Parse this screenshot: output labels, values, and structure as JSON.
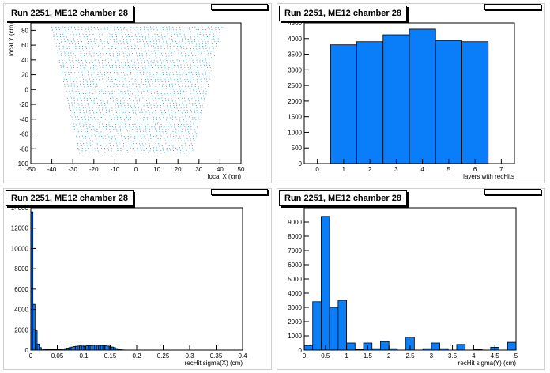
{
  "panels": [
    {
      "title": "Run 2251, ME12 chamber 28"
    },
    {
      "title": "Run 2251, ME12 chamber 28"
    },
    {
      "title": "Run 2251, ME12 chamber 28"
    },
    {
      "title": "Run 2251, ME12 chamber 28"
    }
  ],
  "colors": {
    "fill": "#0a7df8",
    "edge": "#000000",
    "scatter": "#1a8fd8"
  },
  "chart_data": [
    {
      "type": "scatter",
      "title": "Run 2251, ME12 chamber 28",
      "xlabel": "local X (cm)",
      "ylabel": "local Y (cm)",
      "xlim": [
        -50,
        50
      ],
      "ylim": [
        -100,
        90
      ],
      "xticks": [
        -50,
        -40,
        -30,
        -20,
        -10,
        0,
        10,
        20,
        30,
        40,
        50
      ],
      "yticks": [
        -100,
        -80,
        -60,
        -40,
        -20,
        0,
        20,
        40,
        60,
        80
      ],
      "region": {
        "top_y": 85,
        "bottom_y": -85,
        "top_xmin": -40,
        "top_xmax": 41,
        "bottom_xmin": -27,
        "bottom_xmax": 27
      }
    },
    {
      "type": "bar",
      "title": "Run 2251, ME12 chamber 28",
      "xlabel": "layers with recHits",
      "ylabel": "",
      "xlim": [
        -0.5,
        7.5
      ],
      "ylim": [
        0,
        4500
      ],
      "xticks": [
        0,
        1,
        2,
        3,
        4,
        5,
        6,
        7
      ],
      "yticks": [
        0,
        500,
        1000,
        1500,
        2000,
        2500,
        3000,
        3500,
        4000,
        4500
      ],
      "bin_width": 1,
      "x": [
        1,
        2,
        3,
        4,
        5,
        6
      ],
      "values": [
        3800,
        3900,
        4120,
        4300,
        3930,
        3900
      ]
    },
    {
      "type": "bar",
      "title": "Run 2251, ME12 chamber 28",
      "xlabel": "recHit sigma(X) (cm)",
      "ylabel": "",
      "xlim": [
        0,
        0.4
      ],
      "ylim": [
        0,
        14000
      ],
      "xticks": [
        0,
        0.05,
        0.1,
        0.15,
        0.2,
        0.25,
        0.3,
        0.35,
        0.4
      ],
      "yticks": [
        0,
        2000,
        4000,
        6000,
        8000,
        10000,
        12000,
        14000
      ],
      "bin_width": 0.004,
      "x": [
        0.002,
        0.006,
        0.01,
        0.014,
        0.018,
        0.022,
        0.026,
        0.03,
        0.034,
        0.038,
        0.042,
        0.046,
        0.05,
        0.054,
        0.058,
        0.062,
        0.066,
        0.07,
        0.074,
        0.078,
        0.082,
        0.086,
        0.09,
        0.094,
        0.098,
        0.102,
        0.106,
        0.11,
        0.114,
        0.118,
        0.122,
        0.126,
        0.13,
        0.134,
        0.138,
        0.142,
        0.146,
        0.15,
        0.154,
        0.158,
        0.162,
        0.166,
        0.17,
        0.174,
        0.178,
        0.182,
        0.186,
        0.19
      ],
      "values": [
        13600,
        4500,
        1900,
        600,
        250,
        120,
        80,
        60,
        60,
        50,
        50,
        60,
        60,
        70,
        80,
        100,
        150,
        200,
        250,
        300,
        350,
        380,
        400,
        420,
        400,
        380,
        420,
        450,
        450,
        480,
        500,
        480,
        470,
        460,
        450,
        430,
        400,
        350,
        300,
        250,
        150,
        80,
        40,
        20,
        10,
        5,
        3,
        2
      ]
    },
    {
      "type": "bar",
      "title": "Run 2251, ME12 chamber 28",
      "xlabel": "recHit sigma(Y) (cm)",
      "ylabel": "",
      "xlim": [
        0,
        5
      ],
      "ylim": [
        0,
        10000
      ],
      "xticks": [
        0,
        0.5,
        1,
        1.5,
        2,
        2.5,
        3,
        3.5,
        4,
        4.5,
        5
      ],
      "yticks": [
        0,
        1000,
        2000,
        3000,
        4000,
        5000,
        6000,
        7000,
        8000,
        9000
      ],
      "bin_width": 0.2,
      "x": [
        0.1,
        0.3,
        0.5,
        0.7,
        0.9,
        1.1,
        1.3,
        1.5,
        1.7,
        1.9,
        2.1,
        2.3,
        2.5,
        2.7,
        2.9,
        3.1,
        3.3,
        3.5,
        3.7,
        3.9,
        4.1,
        4.3,
        4.5,
        4.7,
        4.9
      ],
      "values": [
        300,
        3400,
        9400,
        3000,
        3500,
        500,
        50,
        500,
        100,
        600,
        100,
        0,
        900,
        0,
        100,
        500,
        100,
        0,
        400,
        0,
        50,
        0,
        200,
        0,
        550
      ]
    }
  ]
}
